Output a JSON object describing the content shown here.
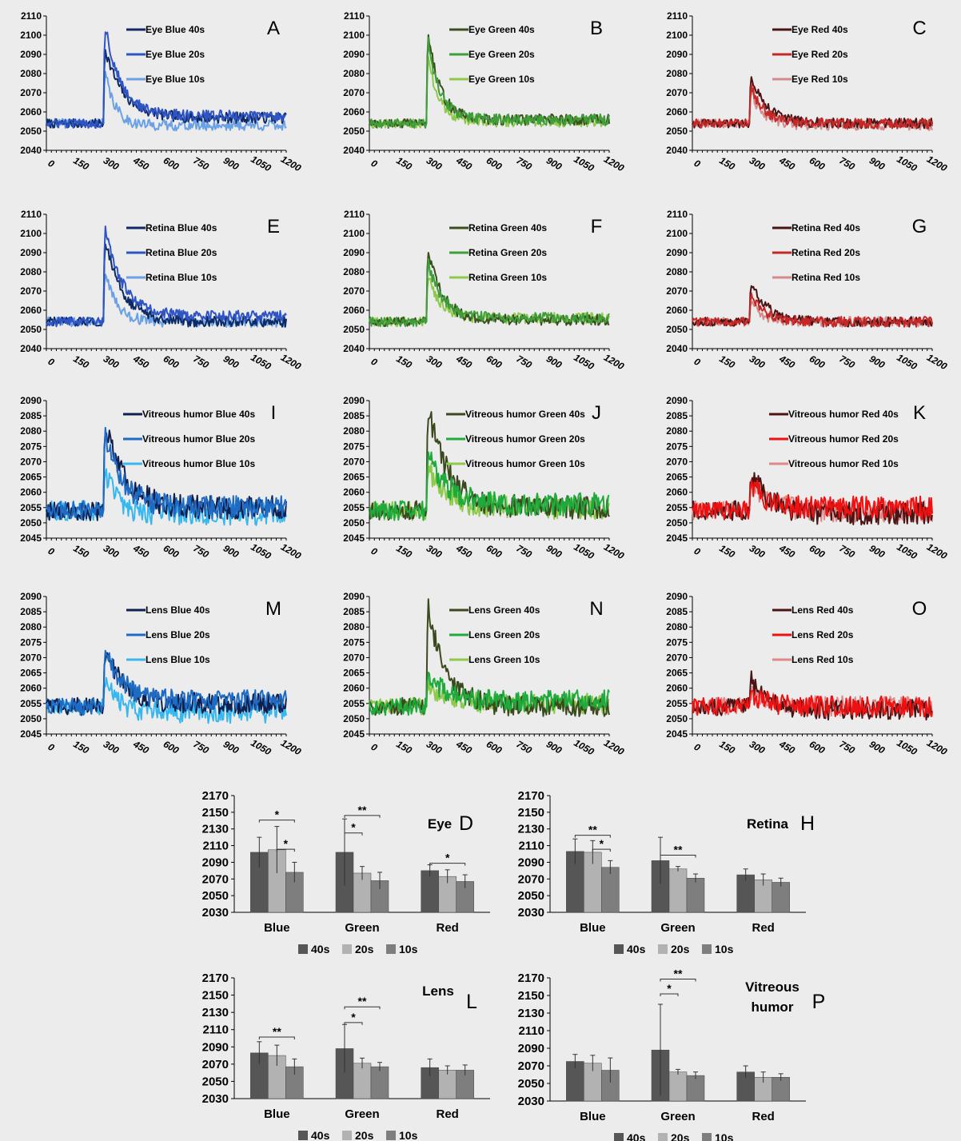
{
  "colors": {
    "blue": [
      "#0e2a66",
      "#2f55c4",
      "#6aa0e6"
    ],
    "green": [
      "#3a4f1e",
      "#3f9e3a",
      "#8ec94a"
    ],
    "red": [
      "#4a1414",
      "#c62828",
      "#d48a8a"
    ],
    "blue2": [
      "#0f2050",
      "#1e6bc4",
      "#37b7ef"
    ],
    "green2": [
      "#3a4a1e",
      "#1faa3c",
      "#8ec94a"
    ],
    "red2": [
      "#4a1414",
      "#ee1111",
      "#e08888"
    ],
    "bar": [
      "#565656",
      "#b2b2b2",
      "#7e7e7e"
    ]
  },
  "chart_data": [
    {
      "id": "A",
      "type": "line",
      "x_ticks": [
        0,
        150,
        300,
        450,
        600,
        750,
        900,
        1050,
        1200
      ],
      "ylim": [
        2040,
        2110
      ],
      "y_ticks": [
        2040,
        2050,
        2060,
        2070,
        2080,
        2090,
        2100,
        2110
      ],
      "baseline": 2054,
      "palette": "blue",
      "noise": 1.5,
      "series": [
        {
          "name": "Eye Blue 40s",
          "peak": 2094,
          "tail": 2057,
          "tau": 90
        },
        {
          "name": "Eye Blue 20s",
          "peak": 2106,
          "tail": 2058,
          "tau": 80
        },
        {
          "name": "Eye Blue 10s",
          "peak": 2082,
          "tail": 2053,
          "tau": 50
        }
      ]
    },
    {
      "id": "B",
      "type": "line",
      "x_ticks": [
        0,
        150,
        300,
        450,
        600,
        750,
        900,
        1050,
        1200
      ],
      "ylim": [
        2040,
        2110
      ],
      "y_ticks": [
        2040,
        2050,
        2060,
        2070,
        2080,
        2090,
        2100,
        2110
      ],
      "baseline": 2054,
      "palette": "green",
      "noise": 1.5,
      "series": [
        {
          "name": "Eye Green 40s",
          "peak": 2103,
          "tail": 2056,
          "tau": 60
        },
        {
          "name": "Eye Green 20s",
          "peak": 2098,
          "tail": 2056,
          "tau": 60
        },
        {
          "name": "Eye Green 10s",
          "peak": 2090,
          "tail": 2055,
          "tau": 55
        }
      ]
    },
    {
      "id": "C",
      "type": "line",
      "x_ticks": [
        0,
        150,
        300,
        450,
        600,
        750,
        900,
        1050,
        1200
      ],
      "ylim": [
        2040,
        2110
      ],
      "y_ticks": [
        2040,
        2050,
        2060,
        2070,
        2080,
        2090,
        2100,
        2110
      ],
      "baseline": 2054,
      "palette": "red",
      "noise": 1.4,
      "series": [
        {
          "name": "Eye Red 40s",
          "peak": 2080,
          "tail": 2054,
          "tau": 80
        },
        {
          "name": "Eye Red 20s",
          "peak": 2073,
          "tail": 2054,
          "tau": 70
        },
        {
          "name": "Eye Red 10s",
          "peak": 2071,
          "tail": 2053,
          "tau": 60
        }
      ]
    },
    {
      "id": "E",
      "type": "line",
      "x_ticks": [
        0,
        150,
        300,
        450,
        600,
        750,
        900,
        1050,
        1200
      ],
      "ylim": [
        2040,
        2110
      ],
      "y_ticks": [
        2040,
        2050,
        2060,
        2070,
        2080,
        2090,
        2100,
        2110
      ],
      "baseline": 2054,
      "palette": "blue",
      "noise": 1.5,
      "series": [
        {
          "name": "Retina Blue 40s",
          "peak": 2097,
          "tail": 2054,
          "tau": 90
        },
        {
          "name": "Retina Blue 20s",
          "peak": 2103,
          "tail": 2057,
          "tau": 90
        },
        {
          "name": "Retina Blue 10s",
          "peak": 2080,
          "tail": 2054,
          "tau": 60
        }
      ]
    },
    {
      "id": "F",
      "type": "line",
      "x_ticks": [
        0,
        150,
        300,
        450,
        600,
        750,
        900,
        1050,
        1200
      ],
      "ylim": [
        2040,
        2110
      ],
      "y_ticks": [
        2040,
        2050,
        2060,
        2070,
        2080,
        2090,
        2100,
        2110
      ],
      "baseline": 2054,
      "palette": "green",
      "noise": 1.5,
      "series": [
        {
          "name": "Retina Green 40s",
          "peak": 2093,
          "tail": 2055,
          "tau": 70
        },
        {
          "name": "Retina Green 20s",
          "peak": 2086,
          "tail": 2056,
          "tau": 70
        },
        {
          "name": "Retina Green 10s",
          "peak": 2078,
          "tail": 2056,
          "tau": 60
        }
      ]
    },
    {
      "id": "G",
      "type": "line",
      "x_ticks": [
        0,
        150,
        300,
        450,
        600,
        750,
        900,
        1050,
        1200
      ],
      "ylim": [
        2040,
        2110
      ],
      "y_ticks": [
        2040,
        2050,
        2060,
        2070,
        2080,
        2090,
        2100,
        2110
      ],
      "baseline": 2054,
      "palette": "red",
      "noise": 1.4,
      "series": [
        {
          "name": "Retina Red 40s",
          "peak": 2075,
          "tail": 2054,
          "tau": 80
        },
        {
          "name": "Retina Red 20s",
          "peak": 2068,
          "tail": 2054,
          "tau": 70
        },
        {
          "name": "Retina Red 10s",
          "peak": 2065,
          "tail": 2054,
          "tau": 60
        }
      ]
    },
    {
      "id": "I",
      "type": "line",
      "x_ticks": [
        0,
        150,
        300,
        450,
        600,
        750,
        900,
        1050,
        1200
      ],
      "ylim": [
        2045,
        2090
      ],
      "y_ticks": [
        2045,
        2050,
        2055,
        2060,
        2065,
        2070,
        2075,
        2080,
        2085,
        2090
      ],
      "baseline": 2054,
      "palette": "blue2",
      "noise": 2.0,
      "series": [
        {
          "name": "Vitreous humor Blue 40s",
          "peak": 2083,
          "tail": 2055,
          "tau": 100
        },
        {
          "name": "Vitreous humor Blue 20s",
          "peak": 2080,
          "tail": 2055,
          "tau": 90
        },
        {
          "name": "Vitreous humor Blue 10s",
          "peak": 2068,
          "tail": 2053,
          "tau": 60
        }
      ]
    },
    {
      "id": "J",
      "type": "line",
      "x_ticks": [
        0,
        150,
        300,
        450,
        600,
        750,
        900,
        1050,
        1200
      ],
      "ylim": [
        2045,
        2090
      ],
      "y_ticks": [
        2045,
        2050,
        2055,
        2060,
        2065,
        2070,
        2075,
        2080,
        2085,
        2090
      ],
      "baseline": 2054,
      "palette": "green2",
      "noise": 2.0,
      "series": [
        {
          "name": "Vitreous humor Green 40s",
          "peak": 2088,
          "tail": 2055,
          "tau": 100
        },
        {
          "name": "Vitreous humor Green 20s",
          "peak": 2072,
          "tail": 2056,
          "tau": 100
        },
        {
          "name": "Vitreous humor Green 10s",
          "peak": 2068,
          "tail": 2055,
          "tau": 90
        }
      ]
    },
    {
      "id": "K",
      "type": "line",
      "x_ticks": [
        0,
        150,
        300,
        450,
        600,
        750,
        900,
        1050,
        1200
      ],
      "ylim": [
        2045,
        2090
      ],
      "y_ticks": [
        2045,
        2050,
        2055,
        2060,
        2065,
        2070,
        2075,
        2080,
        2085,
        2090
      ],
      "baseline": 2054,
      "palette": "red2",
      "noise": 2.0,
      "series": [
        {
          "name": "Vitreous humor Red 40s",
          "peak": 2067,
          "tail": 2053,
          "tau": 90
        },
        {
          "name": "Vitreous humor Red 20s",
          "peak": 2063,
          "tail": 2055,
          "tau": 80
        },
        {
          "name": "Vitreous humor Red 10s",
          "peak": 2064,
          "tail": 2054,
          "tau": 80
        }
      ]
    },
    {
      "id": "M",
      "type": "line",
      "x_ticks": [
        0,
        150,
        300,
        450,
        600,
        750,
        900,
        1050,
        1200
      ],
      "ylim": [
        2045,
        2090
      ],
      "y_ticks": [
        2045,
        2050,
        2055,
        2060,
        2065,
        2070,
        2075,
        2080,
        2085,
        2090
      ],
      "baseline": 2054,
      "palette": "blue2",
      "noise": 1.8,
      "series": [
        {
          "name": "Lens Blue 40s",
          "peak": 2073,
          "tail": 2055,
          "tau": 90
        },
        {
          "name": "Lens Blue 20s",
          "peak": 2072,
          "tail": 2056,
          "tau": 90
        },
        {
          "name": "Lens Blue 10s",
          "peak": 2063,
          "tail": 2052,
          "tau": 60
        }
      ]
    },
    {
      "id": "N",
      "type": "line",
      "x_ticks": [
        0,
        150,
        300,
        450,
        600,
        750,
        900,
        1050,
        1200
      ],
      "ylim": [
        2045,
        2090
      ],
      "y_ticks": [
        2045,
        2050,
        2055,
        2060,
        2065,
        2070,
        2075,
        2080,
        2085,
        2090
      ],
      "baseline": 2054,
      "palette": "green2",
      "noise": 1.8,
      "series": [
        {
          "name": "Lens Green 40s",
          "peak": 2087,
          "tail": 2054,
          "tau": 90
        },
        {
          "name": "Lens Green 20s",
          "peak": 2065,
          "tail": 2056,
          "tau": 80
        },
        {
          "name": "Lens Green 10s",
          "peak": 2062,
          "tail": 2055,
          "tau": 80
        }
      ]
    },
    {
      "id": "O",
      "type": "line",
      "x_ticks": [
        0,
        150,
        300,
        450,
        600,
        750,
        900,
        1050,
        1200
      ],
      "ylim": [
        2045,
        2090
      ],
      "y_ticks": [
        2045,
        2050,
        2055,
        2060,
        2065,
        2070,
        2075,
        2080,
        2085,
        2090
      ],
      "baseline": 2054,
      "palette": "red2",
      "noise": 1.8,
      "series": [
        {
          "name": "Lens Red 40s",
          "peak": 2063,
          "tail": 2053,
          "tau": 80
        },
        {
          "name": "Lens Red 20s",
          "peak": 2059,
          "tail": 2054,
          "tau": 70
        },
        {
          "name": "Lens Red 10s",
          "peak": 2059,
          "tail": 2054,
          "tau": 70
        }
      ]
    },
    {
      "id": "D",
      "type": "bar",
      "title": "Eye",
      "categories": [
        "Blue",
        "Green",
        "Red"
      ],
      "ylim": [
        2030,
        2170
      ],
      "y_ticks": [
        2030,
        2050,
        2070,
        2090,
        2110,
        2130,
        2150,
        2170
      ],
      "series": [
        {
          "name": "40s",
          "values": [
            2102,
            2102,
            2080
          ],
          "errors": [
            18,
            40,
            7
          ]
        },
        {
          "name": "20s",
          "values": [
            2105,
            2077,
            2073
          ],
          "errors": [
            28,
            8,
            8
          ]
        },
        {
          "name": "10s",
          "values": [
            2078,
            2068,
            2067
          ],
          "errors": [
            12,
            10,
            8
          ]
        }
      ],
      "significance": [
        {
          "cat": 0,
          "from": 0,
          "to": 2,
          "level": 0.79,
          "label": "*"
        },
        {
          "cat": 0,
          "from": 1,
          "to": 2,
          "level": 0.54,
          "label": "*"
        },
        {
          "cat": 1,
          "from": 0,
          "to": 1,
          "level": 0.68,
          "label": "*"
        },
        {
          "cat": 1,
          "from": 0,
          "to": 2,
          "level": 0.83,
          "label": "**"
        },
        {
          "cat": 2,
          "from": 0,
          "to": 2,
          "level": 0.42,
          "label": "*"
        }
      ]
    },
    {
      "id": "H",
      "type": "bar",
      "title": "Retina",
      "categories": [
        "Blue",
        "Green",
        "Red"
      ],
      "ylim": [
        2030,
        2170
      ],
      "y_ticks": [
        2030,
        2050,
        2070,
        2090,
        2110,
        2130,
        2150,
        2170
      ],
      "series": [
        {
          "name": "40s",
          "values": [
            2103,
            2092,
            2075
          ],
          "errors": [
            15,
            28,
            7
          ]
        },
        {
          "name": "20s",
          "values": [
            2102,
            2082,
            2069
          ],
          "errors": [
            14,
            3,
            7
          ]
        },
        {
          "name": "10s",
          "values": [
            2084,
            2071,
            2066
          ],
          "errors": [
            8,
            5,
            5
          ]
        }
      ],
      "significance": [
        {
          "cat": 0,
          "from": 0,
          "to": 2,
          "level": 0.66,
          "label": "**"
        },
        {
          "cat": 0,
          "from": 1,
          "to": 2,
          "level": 0.54,
          "label": "*"
        },
        {
          "cat": 1,
          "from": 0,
          "to": 2,
          "level": 0.49,
          "label": "**"
        }
      ]
    },
    {
      "id": "L",
      "type": "bar",
      "title": "Lens",
      "categories": [
        "Blue",
        "Green",
        "Red"
      ],
      "ylim": [
        2030,
        2170
      ],
      "y_ticks": [
        2030,
        2050,
        2070,
        2090,
        2110,
        2130,
        2150,
        2170
      ],
      "series": [
        {
          "name": "40s",
          "values": [
            2083,
            2088,
            2066
          ],
          "errors": [
            13,
            28,
            10
          ]
        },
        {
          "name": "20s",
          "values": [
            2080,
            2071,
            2063
          ],
          "errors": [
            12,
            6,
            5
          ]
        },
        {
          "name": "10s",
          "values": [
            2067,
            2067,
            2063
          ],
          "errors": [
            9,
            5,
            6
          ]
        }
      ],
      "significance": [
        {
          "cat": 0,
          "from": 0,
          "to": 2,
          "level": 0.51,
          "label": "**"
        },
        {
          "cat": 1,
          "from": 0,
          "to": 1,
          "level": 0.63,
          "label": "*"
        },
        {
          "cat": 1,
          "from": 0,
          "to": 2,
          "level": 0.76,
          "label": "**"
        }
      ]
    },
    {
      "id": "P",
      "type": "bar",
      "title": "Vitreous humor",
      "categories": [
        "Blue",
        "Green",
        "Red"
      ],
      "ylim": [
        2030,
        2170
      ],
      "y_ticks": [
        2030,
        2050,
        2070,
        2090,
        2110,
        2130,
        2150,
        2170
      ],
      "series": [
        {
          "name": "40s",
          "values": [
            2075,
            2088,
            2063
          ],
          "errors": [
            8,
            52,
            7
          ]
        },
        {
          "name": "20s",
          "values": [
            2073,
            2063,
            2057
          ],
          "errors": [
            9,
            3,
            6
          ]
        },
        {
          "name": "10s",
          "values": [
            2065,
            2059,
            2057
          ],
          "errors": [
            14,
            4,
            4
          ]
        }
      ],
      "significance": [
        {
          "cat": 1,
          "from": 0,
          "to": 1,
          "level": 0.87,
          "label": "*"
        },
        {
          "cat": 1,
          "from": 0,
          "to": 2,
          "level": 0.99,
          "label": "**"
        }
      ]
    }
  ]
}
